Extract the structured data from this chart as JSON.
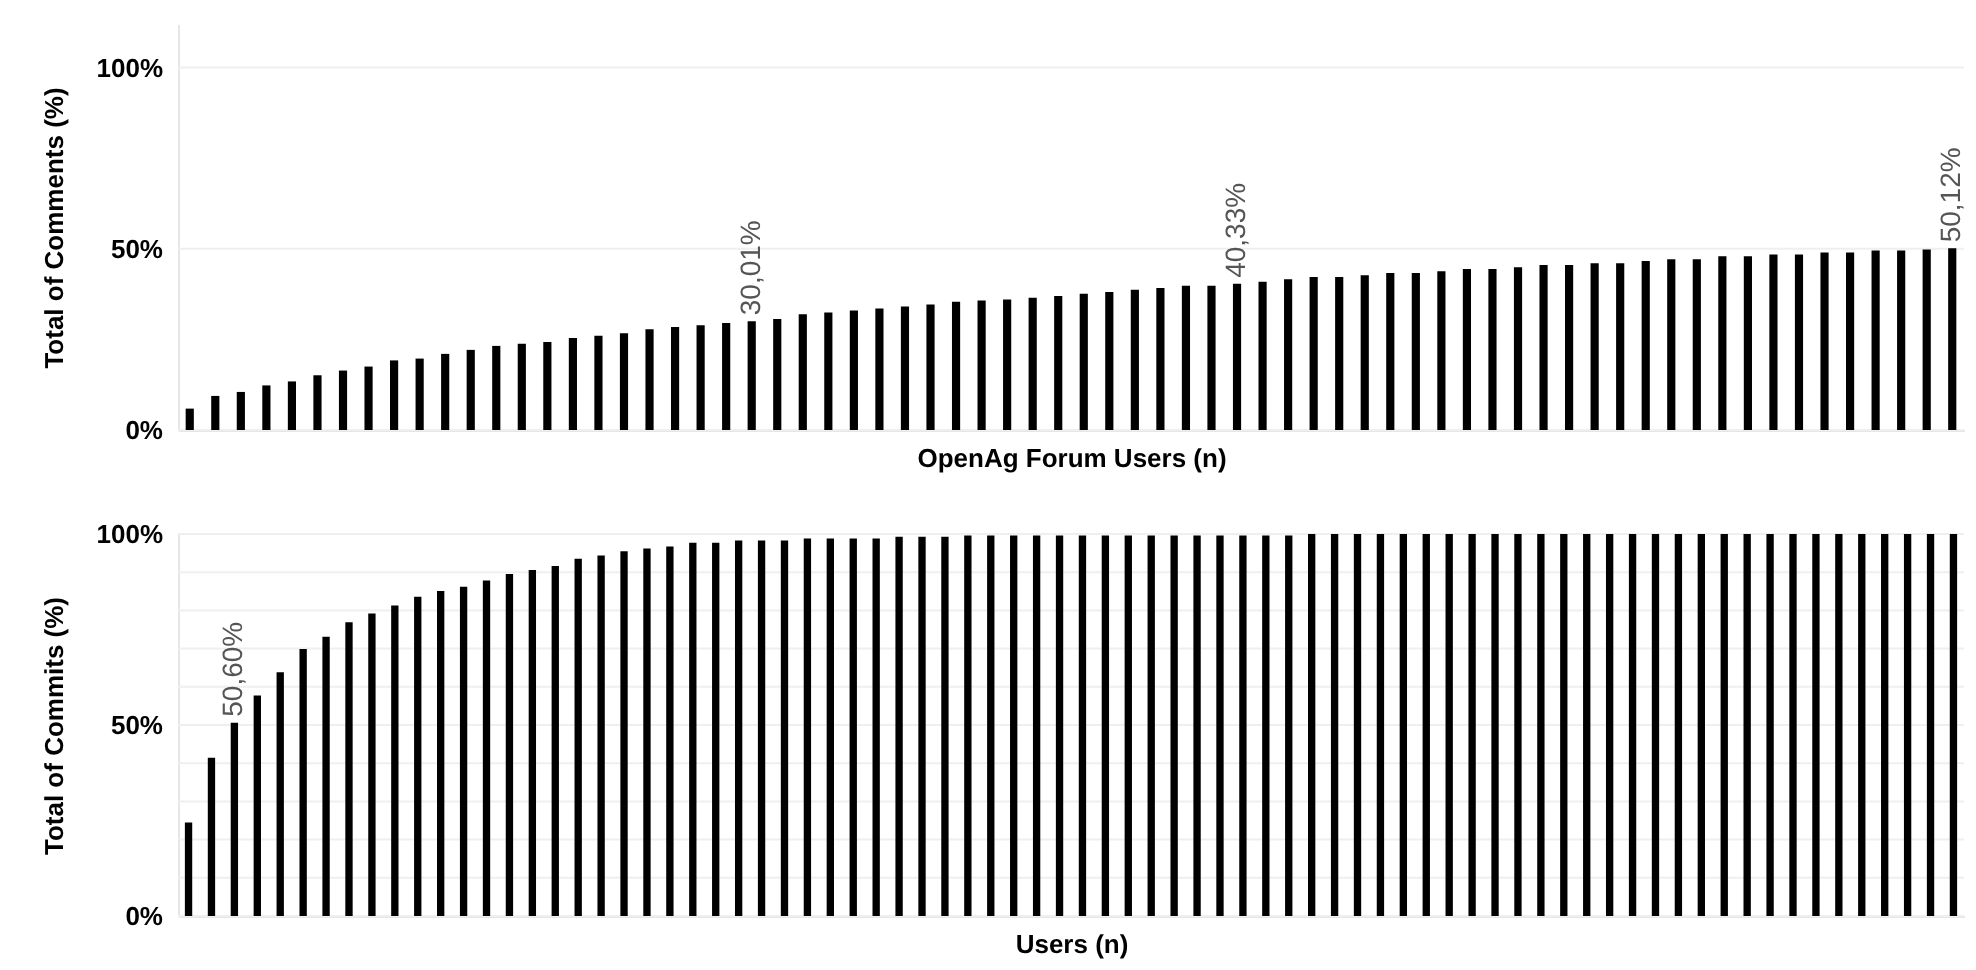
{
  "chart_data": [
    {
      "type": "bar",
      "xlabel": "OpenAg Forum Users (n)",
      "ylabel": "Total of Comments (%)",
      "color": "#000000",
      "categories": [
        null,
        null,
        null,
        null,
        null,
        null,
        null,
        null,
        null,
        null,
        null,
        null,
        null,
        null,
        null,
        null,
        null,
        null,
        null,
        null,
        null,
        null,
        null,
        null,
        null,
        null,
        null,
        null,
        null,
        null,
        null,
        null,
        null,
        null,
        null,
        null,
        null,
        null,
        null,
        null,
        null,
        null,
        null,
        null,
        null,
        null,
        null,
        null,
        null,
        null,
        null,
        null,
        null,
        null,
        null,
        null,
        null,
        null,
        null,
        null,
        null,
        null,
        null,
        null,
        null,
        null,
        null,
        null,
        null,
        null
      ],
      "values": [
        5.9,
        9.4,
        10.5,
        12.3,
        13.4,
        15.1,
        16.4,
        17.5,
        19.2,
        19.7,
        21.0,
        22.1,
        23.2,
        23.8,
        24.3,
        25.4,
        26.0,
        26.7,
        27.8,
        28.4,
        28.9,
        29.5,
        30.01,
        30.6,
        31.9,
        32.4,
        33.0,
        33.5,
        34.1,
        34.6,
        35.4,
        35.7,
        36.0,
        36.5,
        37.0,
        37.6,
        38.1,
        38.7,
        39.2,
        39.8,
        39.8,
        40.33,
        40.9,
        41.6,
        42.2,
        42.2,
        42.7,
        43.3,
        43.3,
        43.8,
        44.4,
        44.4,
        44.9,
        45.5,
        45.5,
        46.0,
        46.0,
        46.6,
        47.1,
        47.1,
        47.9,
        47.9,
        48.4,
        48.4,
        49.0,
        49.0,
        49.5,
        49.5,
        49.8,
        50.12
      ],
      "value_labels": [
        null,
        null,
        null,
        null,
        null,
        null,
        null,
        null,
        null,
        null,
        null,
        null,
        null,
        null,
        null,
        null,
        null,
        null,
        null,
        null,
        null,
        null,
        "30,01%",
        null,
        null,
        null,
        null,
        null,
        null,
        null,
        null,
        null,
        null,
        null,
        null,
        null,
        null,
        null,
        null,
        null,
        null,
        "40,33%",
        null,
        null,
        null,
        null,
        null,
        null,
        null,
        null,
        null,
        null,
        null,
        null,
        null,
        null,
        null,
        null,
        null,
        null,
        null,
        null,
        null,
        null,
        null,
        null,
        null,
        null,
        null,
        "50,12%"
      ],
      "ylim": [
        0,
        112
      ],
      "yticks": [
        {
          "value": 0,
          "label": "0%"
        },
        {
          "value": 50,
          "label": "50%"
        },
        {
          "value": 100,
          "label": "100%"
        }
      ],
      "grid": "y",
      "tick_labels": "y"
    },
    {
      "type": "bar",
      "xlabel": "Users (n)",
      "ylabel": "Total of Commits (%)",
      "color": "#000000",
      "categories": [
        null,
        null,
        null,
        null,
        null,
        null,
        null,
        null,
        null,
        null,
        null,
        null,
        null,
        null,
        null,
        null,
        null,
        null,
        null,
        null,
        null,
        null,
        null,
        null,
        null,
        null,
        null,
        null,
        null,
        null,
        null,
        null,
        null,
        null,
        null,
        null,
        null,
        null,
        null,
        null,
        null,
        null,
        null,
        null,
        null,
        null,
        null,
        null,
        null,
        null,
        null,
        null,
        null,
        null,
        null,
        null,
        null,
        null,
        null,
        null,
        null,
        null,
        null,
        null,
        null,
        null,
        null,
        null,
        null,
        null,
        null,
        null,
        null,
        null,
        null,
        null,
        null,
        null
      ],
      "values": [
        24.5,
        41.4,
        50.6,
        57.7,
        63.8,
        69.9,
        73.1,
        76.9,
        79.2,
        81.3,
        83.6,
        85.1,
        86.2,
        87.8,
        89.5,
        90.6,
        91.6,
        93.5,
        94.4,
        95.5,
        96.2,
        96.7,
        97.7,
        97.7,
        98.3,
        98.3,
        98.3,
        98.8,
        98.8,
        98.8,
        98.8,
        99.3,
        99.3,
        99.3,
        99.6,
        99.6,
        99.6,
        99.6,
        99.6,
        99.6,
        99.6,
        99.6,
        99.6,
        99.6,
        99.6,
        99.6,
        99.6,
        99.6,
        99.6,
        100,
        100,
        100,
        100,
        100,
        100,
        100,
        100,
        100,
        100,
        100,
        100,
        100,
        100,
        100,
        100,
        100,
        100,
        100,
        100,
        100,
        100,
        100,
        100,
        100,
        100,
        100,
        100,
        100
      ],
      "value_labels": [
        null,
        null,
        "50,60%",
        null,
        null,
        null,
        null,
        null,
        null,
        null,
        null,
        null,
        null,
        null,
        null,
        null,
        null,
        null,
        null,
        null,
        null,
        null,
        null,
        null,
        null,
        null,
        null,
        null,
        null,
        null,
        null,
        null,
        null,
        null,
        null,
        null,
        null,
        null,
        null,
        null,
        null,
        null,
        null,
        null,
        null,
        null,
        null,
        null,
        null,
        null,
        null,
        null,
        null,
        null,
        null,
        null,
        null,
        null,
        null,
        null,
        null,
        null,
        null,
        null,
        null,
        null,
        null,
        null,
        null,
        null,
        null,
        null,
        null,
        null,
        null,
        null,
        null,
        null
      ],
      "ylim": [
        0,
        100
      ],
      "yticks": [
        {
          "value": 0,
          "label": "0%"
        },
        {
          "value": 10,
          "label": null
        },
        {
          "value": 20,
          "label": null
        },
        {
          "value": 30,
          "label": null
        },
        {
          "value": 40,
          "label": null
        },
        {
          "value": 50,
          "label": "50%"
        },
        {
          "value": 60,
          "label": null
        },
        {
          "value": 70,
          "label": null
        },
        {
          "value": 80,
          "label": null
        },
        {
          "value": 90,
          "label": null
        },
        {
          "value": 100,
          "label": "100%"
        }
      ],
      "grid": "y",
      "tick_labels": "y"
    }
  ]
}
